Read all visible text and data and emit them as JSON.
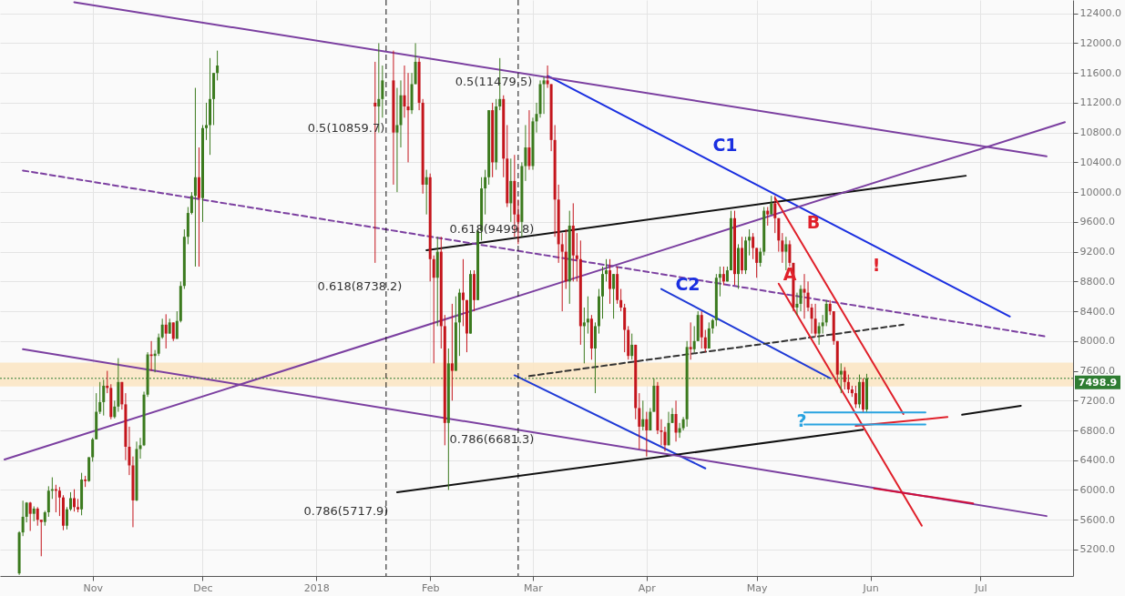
{
  "chart_data": {
    "type": "candlestick",
    "xlim": [
      "2017-10-08",
      "2018-07-25"
    ],
    "ylim": [
      4845,
      12580
    ],
    "xticks": [
      {
        "value": "2017-11-01",
        "label": "Nov"
      },
      {
        "value": "2017-12-01",
        "label": "Dec"
      },
      {
        "value": "2018-01-01",
        "label": "2018"
      },
      {
        "value": "2018-02-01",
        "label": "Feb"
      },
      {
        "value": "2018-03-01",
        "label": "Mar"
      },
      {
        "value": "2018-04-01",
        "label": "Apr"
      },
      {
        "value": "2018-05-01",
        "label": "May"
      },
      {
        "value": "2018-06-01",
        "label": "Jun"
      },
      {
        "value": "2018-07-01",
        "label": "Jul"
      }
    ],
    "yticks": [
      {
        "value": 5200,
        "label": "5200.0"
      },
      {
        "value": 5600,
        "label": "5600.0"
      },
      {
        "value": 6000,
        "label": "6000.0"
      },
      {
        "value": 6400,
        "label": "6400.0"
      },
      {
        "value": 6800,
        "label": "6800.0"
      },
      {
        "value": 7200,
        "label": "7200.0"
      },
      {
        "value": 7600,
        "label": "7600.0"
      },
      {
        "value": 8000,
        "label": "8000.0"
      },
      {
        "value": 8400,
        "label": "8400.0"
      },
      {
        "value": 8800,
        "label": "8800.0"
      },
      {
        "value": 9200,
        "label": "9200.0"
      },
      {
        "value": 9600,
        "label": "9600.0"
      },
      {
        "value": 10000,
        "label": "10000.0"
      },
      {
        "value": 10400,
        "label": "10400.0"
      },
      {
        "value": 10800,
        "label": "10800.0"
      },
      {
        "value": 11200,
        "label": "11200.0"
      },
      {
        "value": 11600,
        "label": "11600.0"
      },
      {
        "value": 12000,
        "label": "12000.0"
      },
      {
        "value": 12400,
        "label": "12400.0"
      }
    ],
    "grid": true,
    "x": [
      "2017-10-12",
      "2017-10-13",
      "2017-10-14",
      "2017-10-15",
      "2017-10-16",
      "2017-10-17",
      "2017-10-18",
      "2017-10-19",
      "2017-10-20",
      "2017-10-21",
      "2017-10-22",
      "2017-10-23",
      "2017-10-24",
      "2017-10-25",
      "2017-10-26",
      "2017-10-27",
      "2017-10-28",
      "2017-10-29",
      "2017-10-30",
      "2017-10-31",
      "2017-11-01",
      "2017-11-02",
      "2017-11-03",
      "2017-11-04",
      "2017-11-05",
      "2017-11-06",
      "2017-11-07",
      "2017-11-08",
      "2017-11-09",
      "2017-11-10",
      "2017-11-11",
      "2017-11-12",
      "2017-11-13",
      "2017-11-14",
      "2017-11-15",
      "2017-11-16",
      "2017-11-17",
      "2017-11-18",
      "2017-11-19",
      "2017-11-20",
      "2017-11-21",
      "2017-11-22",
      "2017-11-23",
      "2017-11-24",
      "2017-11-25",
      "2017-11-26",
      "2017-11-27",
      "2017-11-28",
      "2017-11-29",
      "2017-11-30",
      "2017-12-01",
      "2017-12-02",
      "2017-12-03",
      "2017-12-04",
      "2017-12-05",
      "2018-01-17",
      "2018-01-18",
      "2018-01-19",
      "2018-01-22",
      "2018-01-23",
      "2018-01-24",
      "2018-01-25",
      "2018-01-26",
      "2018-01-27",
      "2018-01-28",
      "2018-01-29",
      "2018-01-30",
      "2018-01-31",
      "2018-02-01",
      "2018-02-02",
      "2018-02-03",
      "2018-02-04",
      "2018-02-05",
      "2018-02-06",
      "2018-02-07",
      "2018-02-08",
      "2018-02-09",
      "2018-02-10",
      "2018-02-11",
      "2018-02-12",
      "2018-02-13",
      "2018-02-14",
      "2018-02-15",
      "2018-02-16",
      "2018-02-17",
      "2018-02-18",
      "2018-02-19",
      "2018-02-20",
      "2018-02-21",
      "2018-02-22",
      "2018-02-23",
      "2018-02-24",
      "2018-02-25",
      "2018-02-26",
      "2018-02-27",
      "2018-02-28",
      "2018-03-01",
      "2018-03-02",
      "2018-03-03",
      "2018-03-04",
      "2018-03-05",
      "2018-03-06",
      "2018-03-07",
      "2018-03-08",
      "2018-03-09",
      "2018-03-10",
      "2018-03-11",
      "2018-03-12",
      "2018-03-13",
      "2018-03-14",
      "2018-03-15",
      "2018-03-16",
      "2018-03-17",
      "2018-03-18",
      "2018-03-19",
      "2018-03-20",
      "2018-03-21",
      "2018-03-22",
      "2018-03-23",
      "2018-03-24",
      "2018-03-25",
      "2018-03-26",
      "2018-03-27",
      "2018-03-28",
      "2018-03-29",
      "2018-03-30",
      "2018-03-31",
      "2018-04-01",
      "2018-04-02",
      "2018-04-03",
      "2018-04-04",
      "2018-04-05",
      "2018-04-06",
      "2018-04-07",
      "2018-04-08",
      "2018-04-09",
      "2018-04-10",
      "2018-04-11",
      "2018-04-12",
      "2018-04-13",
      "2018-04-14",
      "2018-04-15",
      "2018-04-16",
      "2018-04-17",
      "2018-04-18",
      "2018-04-19",
      "2018-04-20",
      "2018-04-21",
      "2018-04-22",
      "2018-04-23",
      "2018-04-24",
      "2018-04-25",
      "2018-04-26",
      "2018-04-27",
      "2018-04-28",
      "2018-04-29",
      "2018-04-30",
      "2018-05-01",
      "2018-05-02",
      "2018-05-03",
      "2018-05-04",
      "2018-05-05",
      "2018-05-06",
      "2018-05-07",
      "2018-05-08",
      "2018-05-09",
      "2018-05-10",
      "2018-05-11",
      "2018-05-12",
      "2018-05-13",
      "2018-05-14",
      "2018-05-15",
      "2018-05-16",
      "2018-05-17",
      "2018-05-18",
      "2018-05-19",
      "2018-05-20",
      "2018-05-21",
      "2018-05-22",
      "2018-05-23",
      "2018-05-24",
      "2018-05-25",
      "2018-05-26",
      "2018-05-27",
      "2018-05-28",
      "2018-05-29",
      "2018-05-30",
      "2018-05-31"
    ],
    "ohlc": [
      [
        4880,
        5446,
        4860,
        5430
      ],
      [
        5430,
        5856,
        5380,
        5640
      ],
      [
        5640,
        5837,
        5565,
        5830
      ],
      [
        5830,
        5840,
        5450,
        5680
      ],
      [
        5680,
        5780,
        5580,
        5750
      ],
      [
        5750,
        5770,
        5520,
        5600
      ],
      [
        5600,
        5600,
        5110,
        5570
      ],
      [
        5570,
        5720,
        5520,
        5700
      ],
      [
        5700,
        6050,
        5640,
        5990
      ],
      [
        5990,
        6170,
        5880,
        6010
      ],
      [
        6010,
        6070,
        5700,
        5990
      ],
      [
        5990,
        6040,
        5650,
        5900
      ],
      [
        5900,
        5930,
        5460,
        5520
      ],
      [
        5520,
        5770,
        5470,
        5740
      ],
      [
        5740,
        5970,
        5720,
        5890
      ],
      [
        5890,
        6010,
        5710,
        5770
      ],
      [
        5770,
        5880,
        5700,
        5740
      ],
      [
        5740,
        6230,
        5660,
        6140
      ],
      [
        6140,
        6190,
        6040,
        6120
      ],
      [
        6120,
        6440,
        6110,
        6440
      ],
      [
        6440,
        6700,
        6380,
        6680
      ],
      [
        6680,
        7300,
        6680,
        7050
      ],
      [
        7050,
        7450,
        7020,
        7180
      ],
      [
        7180,
        7480,
        7000,
        7400
      ],
      [
        7400,
        7600,
        7300,
        7370
      ],
      [
        7370,
        7420,
        6950,
        6980
      ],
      [
        6980,
        7200,
        6960,
        7120
      ],
      [
        7120,
        7770,
        7050,
        7450
      ],
      [
        7450,
        7450,
        7080,
        7150
      ],
      [
        7150,
        7300,
        6400,
        6580
      ],
      [
        6580,
        6850,
        6200,
        6330
      ],
      [
        6330,
        6450,
        5500,
        5860
      ],
      [
        5860,
        6650,
        5850,
        6550
      ],
      [
        6550,
        6700,
        6420,
        6600
      ],
      [
        6600,
        7320,
        6590,
        7280
      ],
      [
        7280,
        7850,
        7250,
        7820
      ],
      [
        7820,
        8000,
        7600,
        7800
      ],
      [
        7800,
        7880,
        7580,
        7830
      ],
      [
        7830,
        8100,
        7800,
        8050
      ],
      [
        8050,
        8300,
        8030,
        8220
      ],
      [
        8220,
        8360,
        7900,
        8100
      ],
      [
        8100,
        8300,
        8100,
        8250
      ],
      [
        8250,
        8250,
        8000,
        8030
      ],
      [
        8030,
        8400,
        8030,
        8270
      ],
      [
        8270,
        8800,
        8250,
        8740
      ],
      [
        8740,
        9500,
        8700,
        9400
      ],
      [
        9400,
        9800,
        9300,
        9720
      ],
      [
        9720,
        10000,
        9700,
        9950
      ],
      [
        9950,
        11400,
        9000,
        10200
      ],
      [
        10200,
        10600,
        9000,
        9920
      ],
      [
        9920,
        10900,
        9600,
        10860
      ],
      [
        10860,
        11200,
        10700,
        10900
      ],
      [
        10900,
        11800,
        10500,
        11250
      ],
      [
        11250,
        11600,
        10900,
        11600
      ],
      [
        11600,
        11900,
        11500,
        11700
      ],
      [
        11200,
        11750,
        9050,
        11150
      ],
      [
        11150,
        12000,
        10800,
        11250
      ],
      [
        11250,
        11700,
        11000,
        11500
      ],
      [
        11500,
        11900,
        10100,
        10800
      ],
      [
        10800,
        11400,
        10000,
        10900
      ],
      [
        10900,
        11500,
        10600,
        11300
      ],
      [
        11300,
        11700,
        11000,
        11150
      ],
      [
        11150,
        11600,
        10400,
        11100
      ],
      [
        11100,
        11600,
        11050,
        11450
      ],
      [
        11450,
        12000,
        11450,
        11750
      ],
      [
        11750,
        11800,
        11100,
        11200
      ],
      [
        11200,
        11250,
        9980,
        10100
      ],
      [
        10100,
        10300,
        9700,
        10200
      ],
      [
        10200,
        10250,
        8800,
        9100
      ],
      [
        9100,
        9150,
        7700,
        8850
      ],
      [
        8850,
        9400,
        8200,
        9200
      ],
      [
        9200,
        9400,
        7900,
        8200
      ],
      [
        8200,
        8350,
        6600,
        6900
      ],
      [
        6900,
        7900,
        6000,
        7700
      ],
      [
        7700,
        8500,
        7200,
        7600
      ],
      [
        7600,
        8600,
        7600,
        8250
      ],
      [
        8250,
        8700,
        7800,
        8650
      ],
      [
        8650,
        9100,
        8200,
        8550
      ],
      [
        8550,
        8550,
        7850,
        8100
      ],
      [
        8100,
        8950,
        8100,
        8900
      ],
      [
        8900,
        8950,
        8400,
        8550
      ],
      [
        8550,
        9500,
        8550,
        9480
      ],
      [
        9480,
        10200,
        9350,
        10050
      ],
      [
        10050,
        10300,
        9700,
        10200
      ],
      [
        10200,
        11100,
        10100,
        11100
      ],
      [
        11100,
        11200,
        10200,
        10400
      ],
      [
        10400,
        11250,
        10300,
        11150
      ],
      [
        11150,
        11800,
        11100,
        11250
      ],
      [
        11250,
        11300,
        10200,
        10450
      ],
      [
        10450,
        10900,
        9800,
        9850
      ],
      [
        9850,
        10450,
        9600,
        10150
      ],
      [
        10150,
        10500,
        9400,
        9700
      ],
      [
        9700,
        9900,
        9300,
        9600
      ],
      [
        9600,
        10400,
        9400,
        10350
      ],
      [
        10350,
        10900,
        10150,
        10600
      ],
      [
        10600,
        11100,
        10300,
        10350
      ],
      [
        10350,
        11000,
        10300,
        10950
      ],
      [
        10950,
        11200,
        10800,
        11050
      ],
      [
        11050,
        11500,
        11000,
        11450
      ],
      [
        11450,
        11550,
        11050,
        11500
      ],
      [
        11500,
        11700,
        11400,
        11450
      ],
      [
        11450,
        11450,
        10550,
        10700
      ],
      [
        10700,
        10900,
        9400,
        9900
      ],
      [
        9900,
        10100,
        9050,
        9300
      ],
      [
        9300,
        9450,
        8400,
        9200
      ],
      [
        9200,
        9500,
        8700,
        8800
      ],
      [
        8800,
        9750,
        8500,
        9550
      ],
      [
        9550,
        9850,
        8800,
        9150
      ],
      [
        9150,
        9450,
        8800,
        9100
      ],
      [
        9100,
        9350,
        7950,
        8200
      ],
      [
        8200,
        8450,
        7700,
        8250
      ],
      [
        8250,
        8600,
        8100,
        8300
      ],
      [
        8300,
        8350,
        7750,
        7900
      ],
      [
        7900,
        8250,
        7300,
        8200
      ],
      [
        8200,
        8700,
        8100,
        8600
      ],
      [
        8600,
        9000,
        8300,
        8900
      ],
      [
        8900,
        9100,
        8800,
        8950
      ],
      [
        8950,
        9100,
        8500,
        8700
      ],
      [
        8700,
        8900,
        8300,
        8900
      ],
      [
        8900,
        9000,
        8500,
        8550
      ],
      [
        8550,
        8700,
        8400,
        8450
      ],
      [
        8450,
        8500,
        7850,
        8150
      ],
      [
        8150,
        8200,
        7750,
        7800
      ],
      [
        7800,
        8100,
        7750,
        7950
      ],
      [
        7950,
        7950,
        6950,
        7100
      ],
      [
        7100,
        7300,
        6550,
        6850
      ],
      [
        6850,
        7200,
        6800,
        6950
      ],
      [
        6950,
        7050,
        6450,
        6800
      ],
      [
        6800,
        7100,
        6800,
        7050
      ],
      [
        7050,
        7500,
        7050,
        7400
      ],
      [
        7400,
        7450,
        6750,
        6800
      ],
      [
        6800,
        6950,
        6600,
        6780
      ],
      [
        6780,
        6850,
        6520,
        6600
      ],
      [
        6600,
        7050,
        6600,
        6900
      ],
      [
        6900,
        7100,
        6900,
        7020
      ],
      [
        7020,
        7200,
        6650,
        6770
      ],
      [
        6770,
        6900,
        6700,
        6830
      ],
      [
        6830,
        6980,
        6800,
        6950
      ],
      [
        6950,
        8000,
        6850,
        7920
      ],
      [
        7920,
        8250,
        7750,
        7890
      ],
      [
        7890,
        8200,
        7850,
        8000
      ],
      [
        8000,
        8400,
        8000,
        8350
      ],
      [
        8350,
        8400,
        7900,
        8050
      ],
      [
        8050,
        8150,
        7850,
        7900
      ],
      [
        7900,
        8250,
        7900,
        8170
      ],
      [
        8170,
        8300,
        8100,
        8280
      ],
      [
        8280,
        8900,
        8200,
        8850
      ],
      [
        8850,
        9000,
        8600,
        8900
      ],
      [
        8900,
        9000,
        8750,
        8800
      ],
      [
        8800,
        9000,
        8800,
        8950
      ],
      [
        8950,
        9750,
        8950,
        9650
      ],
      [
        9650,
        9750,
        8750,
        8900
      ],
      [
        8900,
        9300,
        8700,
        9250
      ],
      [
        9250,
        9400,
        8900,
        8950
      ],
      [
        8950,
        9400,
        8900,
        9350
      ],
      [
        9350,
        9500,
        9150,
        9400
      ],
      [
        9400,
        9450,
        9100,
        9250
      ],
      [
        9250,
        9250,
        8850,
        9050
      ],
      [
        9050,
        9250,
        9000,
        9200
      ],
      [
        9200,
        9800,
        9150,
        9750
      ],
      [
        9750,
        9800,
        9550,
        9700
      ],
      [
        9700,
        9950,
        9700,
        9850
      ],
      [
        9850,
        9950,
        9450,
        9650
      ],
      [
        9650,
        9650,
        9200,
        9350
      ],
      [
        9350,
        9450,
        9050,
        9200
      ],
      [
        9200,
        9400,
        8950,
        9300
      ],
      [
        9300,
        9350,
        9000,
        9050
      ],
      [
        9050,
        9050,
        8400,
        8450
      ],
      [
        8450,
        8650,
        8350,
        8500
      ],
      [
        8500,
        8750,
        8400,
        8700
      ],
      [
        8700,
        8900,
        8300,
        8650
      ],
      [
        8650,
        8800,
        8400,
        8450
      ],
      [
        8450,
        8500,
        8100,
        8300
      ],
      [
        8300,
        8500,
        8050,
        8100
      ],
      [
        8100,
        8250,
        7950,
        8200
      ],
      [
        8200,
        8350,
        8100,
        8250
      ],
      [
        8250,
        8550,
        8200,
        8500
      ],
      [
        8500,
        8550,
        8350,
        8400
      ],
      [
        8400,
        8400,
        7950,
        8000
      ],
      [
        8000,
        8000,
        7450,
        7550
      ],
      [
        7550,
        7700,
        7300,
        7600
      ],
      [
        7600,
        7650,
        7350,
        7450
      ],
      [
        7450,
        7550,
        7300,
        7350
      ],
      [
        7350,
        7400,
        7250,
        7300
      ],
      [
        7300,
        7400,
        7100,
        7150
      ],
      [
        7150,
        7550,
        7100,
        7450
      ],
      [
        7450,
        7500,
        7050,
        7080
      ],
      [
        7080,
        7560,
        7050,
        7498.9
      ]
    ],
    "colors": [
      "#3b7a1e",
      "#3b7a1e",
      "#3b7a1e",
      "#c4151c",
      "#3b7a1e",
      "#c4151c",
      "#c4151c",
      "#3b7a1e",
      "#3b7a1e",
      "#3b7a1e",
      "#c4151c",
      "#c4151c",
      "#c4151c",
      "#3b7a1e",
      "#3b7a1e",
      "#c4151c",
      "#c4151c",
      "#3b7a1e",
      "#c4151c",
      "#3b7a1e",
      "#3b7a1e",
      "#3b7a1e",
      "#3b7a1e",
      "#3b7a1e",
      "#c4151c",
      "#c4151c",
      "#3b7a1e",
      "#3b7a1e",
      "#c4151c",
      "#c4151c",
      "#c4151c",
      "#c4151c",
      "#3b7a1e",
      "#3b7a1e",
      "#3b7a1e",
      "#3b7a1e",
      "#c4151c",
      "#3b7a1e",
      "#3b7a1e",
      "#3b7a1e",
      "#c4151c",
      "#3b7a1e",
      "#c4151c",
      "#3b7a1e",
      "#3b7a1e",
      "#3b7a1e",
      "#3b7a1e",
      "#3b7a1e",
      "#3b7a1e",
      "#c4151c",
      "#3b7a1e",
      "#3b7a1e",
      "#3b7a1e",
      "#3b7a1e",
      "#3b7a1e",
      "#c4151c",
      "#3b7a1e",
      "#3b7a1e",
      "#c4151c",
      "#3b7a1e",
      "#3b7a1e",
      "#c4151c",
      "#c4151c",
      "#3b7a1e",
      "#3b7a1e",
      "#c4151c",
      "#c4151c",
      "#3b7a1e",
      "#c4151c",
      "#c4151c",
      "#3b7a1e",
      "#c4151c",
      "#c4151c",
      "#3b7a1e",
      "#c4151c",
      "#3b7a1e",
      "#3b7a1e",
      "#c4151c",
      "#c4151c",
      "#3b7a1e",
      "#c4151c",
      "#3b7a1e",
      "#3b7a1e",
      "#3b7a1e",
      "#3b7a1e",
      "#c4151c",
      "#3b7a1e",
      "#3b7a1e",
      "#c4151c",
      "#c4151c",
      "#3b7a1e",
      "#c4151c",
      "#c4151c",
      "#3b7a1e",
      "#3b7a1e",
      "#c4151c",
      "#3b7a1e",
      "#3b7a1e",
      "#3b7a1e",
      "#3b7a1e",
      "#c4151c",
      "#c4151c",
      "#c4151c",
      "#c4151c",
      "#c4151c",
      "#c4151c",
      "#3b7a1e",
      "#c4151c",
      "#c4151c",
      "#c4151c",
      "#3b7a1e",
      "#3b7a1e",
      "#c4151c",
      "#3b7a1e",
      "#3b7a1e",
      "#3b7a1e",
      "#3b7a1e",
      "#c4151c",
      "#3b7a1e",
      "#c4151c",
      "#c4151c",
      "#c4151c",
      "#c4151c",
      "#3b7a1e",
      "#c4151c",
      "#c4151c",
      "#3b7a1e",
      "#c4151c",
      "#3b7a1e",
      "#3b7a1e",
      "#c4151c",
      "#c4151c",
      "#c4151c",
      "#3b7a1e",
      "#3b7a1e",
      "#c4151c",
      "#3b7a1e",
      "#3b7a1e",
      "#3b7a1e",
      "#c4151c",
      "#3b7a1e",
      "#3b7a1e",
      "#c4151c",
      "#c4151c",
      "#3b7a1e",
      "#3b7a1e",
      "#3b7a1e",
      "#3b7a1e",
      "#c4151c",
      "#3b7a1e",
      "#3b7a1e",
      "#c4151c",
      "#3b7a1e",
      "#c4151c",
      "#3b7a1e",
      "#3b7a1e",
      "#c4151c",
      "#c4151c",
      "#3b7a1e",
      "#3b7a1e",
      "#c4151c",
      "#3b7a1e",
      "#c4151c",
      "#c4151c",
      "#c4151c",
      "#3b7a1e",
      "#c4151c",
      "#c4151c",
      "#3b7a1e",
      "#3b7a1e",
      "#c4151c",
      "#c4151c",
      "#c4151c",
      "#c4151c",
      "#3b7a1e",
      "#3b7a1e",
      "#3b7a1e",
      "#c4151c",
      "#c4151c",
      "#c4151c",
      "#3b7a1e",
      "#c4151c",
      "#c4151c",
      "#c4151c",
      "#c4151c",
      "#3b7a1e",
      "#c4151c",
      "#3b7a1e"
    ],
    "series": [
      {
        "type": "line",
        "color": "#1a2fe0",
        "x": [
          "2018-03-05",
          "2018-07-09"
        ],
        "values": [
          11560,
          8330
        ]
      },
      {
        "type": "line",
        "color": "#1f3ad6",
        "x": [
          "2018-04-05",
          "2018-05-21"
        ],
        "values": [
          8700,
          7500
        ]
      },
      {
        "type": "line",
        "color": "#1f3ad6",
        "x": [
          "2018-02-24",
          "2018-04-17"
        ],
        "values": [
          7540,
          6290
        ]
      },
      {
        "type": "line",
        "color": "#111111",
        "x": [
          "2018-01-31",
          "2018-06-27"
        ],
        "values": [
          9220,
          10220
        ]
      },
      {
        "type": "line",
        "color": "#111111",
        "x": [
          "2018-01-23",
          "2018-05-30"
        ],
        "values": [
          5970,
          6810
        ]
      },
      {
        "type": "line",
        "color": "#111111",
        "x": [
          "2018-06-26",
          "2018-07-12"
        ],
        "values": [
          7010,
          7130
        ]
      },
      {
        "type": "line",
        "color": "#333333",
        "line_style": "dashed",
        "x": [
          "2018-02-28",
          "2018-06-10"
        ],
        "values": [
          7530,
          8220
        ]
      },
      {
        "type": "line",
        "color": "#7b3fa0",
        "line_style": "dashed",
        "x": [
          "2017-10-13",
          "2018-07-19"
        ],
        "values": [
          10290,
          8060
        ]
      },
      {
        "type": "line",
        "color": "#7b3fa0",
        "x": [
          "2017-10-27",
          "2018-07-19"
        ],
        "values": [
          12550,
          10480
        ]
      },
      {
        "type": "line",
        "color": "#7b3fa0",
        "x": [
          "2017-10-13",
          "2018-07-19"
        ],
        "values": [
          7890,
          5650
        ]
      },
      {
        "type": "line",
        "color": "#7b3fa0",
        "x": [
          "2017-10-08",
          "2018-07-24"
        ],
        "values": [
          6410,
          10940
        ]
      },
      {
        "type": "line",
        "color": "#e0202a",
        "x": [
          "2018-05-07",
          "2018-06-15"
        ],
        "values": [
          8770,
          5520
        ]
      },
      {
        "type": "line",
        "color": "#e0202a",
        "x": [
          "2018-05-06",
          "2018-06-10"
        ],
        "values": [
          9920,
          7020
        ]
      },
      {
        "type": "line",
        "color": "#d0103a",
        "x": [
          "2018-06-02",
          "2018-06-29"
        ],
        "values": [
          6020,
          5820
        ]
      },
      {
        "type": "line",
        "color": "#e0202a",
        "x": [
          "2018-05-28",
          "2018-06-22"
        ],
        "values": [
          6860,
          6980
        ]
      },
      {
        "type": "line",
        "color": "#29a3e0",
        "x": [
          "2018-05-14",
          "2018-06-16"
        ],
        "values": [
          7040,
          7040
        ]
      },
      {
        "type": "line",
        "color": "#29a3e0",
        "x": [
          "2018-05-14",
          "2018-06-16"
        ],
        "values": [
          6880,
          6880
        ]
      }
    ],
    "bands": [
      {
        "axis": "y",
        "from": 7390,
        "to": 7710,
        "color": "#fbe6c4"
      }
    ],
    "ref_lines": [
      {
        "axis": "y",
        "value": 7498.9,
        "label": "7498.9",
        "color": "#2e7d32",
        "line_style": "dotted"
      },
      {
        "axis": "x",
        "value": "2018-01-20",
        "color": "#111111",
        "line_style": "dashed"
      },
      {
        "axis": "x",
        "value": "2018-02-25",
        "color": "#111111",
        "line_style": "dashed"
      }
    ],
    "annotations": [
      "0.5(11479.5)",
      "0.5(10859.7)",
      "0.618(9499.8)",
      "0.618(8738.2)",
      "0.786(6681.3)",
      "0.786(5717.9)",
      "C1",
      "C2",
      "A",
      "B",
      "!",
      "?"
    ]
  }
}
